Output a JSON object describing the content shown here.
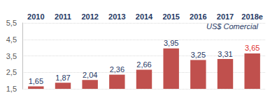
{
  "chart_data": {
    "type": "bar",
    "annotation": "US$ Comercial",
    "categories": [
      "2010",
      "2011",
      "2012",
      "2013",
      "2014",
      "2015",
      "2016",
      "2017",
      "2018e"
    ],
    "values": [
      1.65,
      1.87,
      2.04,
      2.36,
      2.66,
      3.95,
      3.25,
      3.31,
      3.65
    ],
    "value_labels": [
      "1,65",
      "1,87",
      "2,04",
      "2,36",
      "2,66",
      "3,95",
      "3,25",
      "3,31",
      "3,65"
    ],
    "color": "#c0504d",
    "ylim": [
      1.5,
      5.5
    ],
    "yticks": [
      {
        "value": 1.5,
        "label": "1,5"
      },
      {
        "value": 2.5,
        "label": "2,5"
      },
      {
        "value": 3.5,
        "label": "3,5"
      },
      {
        "value": 4.5,
        "label": "4,5"
      },
      {
        "value": 5.5,
        "label": "5,5"
      }
    ],
    "grid": true,
    "data_labels": true
  }
}
